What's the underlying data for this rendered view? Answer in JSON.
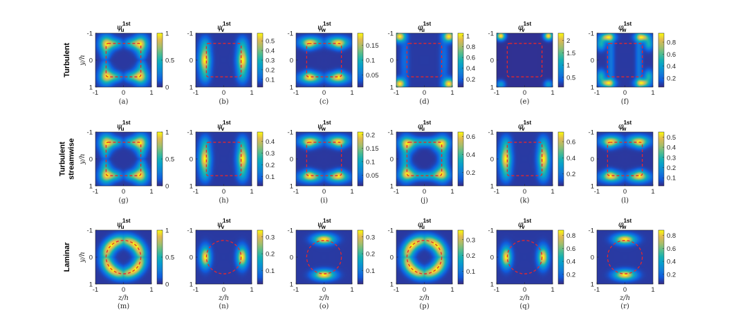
{
  "figure": {
    "row_labels": [
      [
        "Turbulent"
      ],
      [
        "Turbulent",
        "streamwise"
      ],
      [
        "Laminar"
      ]
    ],
    "y_axis_label": "y/h",
    "x_axis_label": "z/h",
    "axis_ticks": [
      "-1",
      "0",
      "1"
    ]
  },
  "chart_data": [
    {
      "type": "heatmap",
      "panel": "(a)",
      "title_symbol": "ψ",
      "title_sup": "1st",
      "title_sub": "u",
      "row": "Turbulent",
      "colorbar_ticks": [
        "1",
        "0.5",
        "0"
      ],
      "range": [
        0,
        1
      ],
      "pattern": "u",
      "wall": "square",
      "xlim": [
        -1,
        1
      ],
      "ylim": [
        -1,
        1
      ]
    },
    {
      "type": "heatmap",
      "panel": "(b)",
      "title_symbol": "ψ",
      "title_sup": "1st",
      "title_sub": "v",
      "row": "Turbulent",
      "colorbar_ticks": [
        "0.5",
        "0.4",
        "0.3",
        "0.2",
        "0.1"
      ],
      "range": [
        0.02,
        0.58
      ],
      "pattern": "v",
      "wall": "square",
      "xlim": [
        -1,
        1
      ],
      "ylim": [
        -1,
        1
      ]
    },
    {
      "type": "heatmap",
      "panel": "(c)",
      "title_symbol": "ψ",
      "title_sup": "1st",
      "title_sub": "w",
      "row": "Turbulent",
      "colorbar_ticks": [
        "0.15",
        "0.1",
        "0.05"
      ],
      "range": [
        0.01,
        0.19
      ],
      "pattern": "w",
      "wall": "square",
      "xlim": [
        -1,
        1
      ],
      "ylim": [
        -1,
        1
      ]
    },
    {
      "type": "heatmap",
      "panel": "(d)",
      "title_symbol": "φ",
      "title_sup": "1st",
      "title_sub": "u",
      "row": "Turbulent",
      "colorbar_ticks": [
        "1",
        "0.8",
        "0.6",
        "0.4",
        "0.2"
      ],
      "range": [
        0.05,
        1.05
      ],
      "pattern": "corners",
      "wall": "square",
      "xlim": [
        -1,
        1
      ],
      "ylim": [
        -1,
        1
      ]
    },
    {
      "type": "heatmap",
      "panel": "(e)",
      "title_symbol": "φ",
      "title_sup": "1st",
      "title_sub": "v",
      "row": "Turbulent",
      "colorbar_ticks": [
        "2",
        "1.5",
        "1",
        "0.5"
      ],
      "range": [
        0.1,
        2.3
      ],
      "pattern": "corners_top",
      "wall": "square",
      "xlim": [
        -1,
        1
      ],
      "ylim": [
        -1,
        1
      ]
    },
    {
      "type": "heatmap",
      "panel": "(f)",
      "title_symbol": "φ",
      "title_sup": "1st",
      "title_sub": "w",
      "row": "Turbulent",
      "colorbar_ticks": [
        "0.8",
        "0.6",
        "0.4",
        "0.2"
      ],
      "range": [
        0.05,
        0.95
      ],
      "pattern": "corners_web",
      "wall": "square",
      "xlim": [
        -1,
        1
      ],
      "ylim": [
        -1,
        1
      ]
    },
    {
      "type": "heatmap",
      "panel": "(g)",
      "title_symbol": "ψ",
      "title_sup": "1st",
      "title_sub": "u",
      "row": "Turbulent streamwise",
      "colorbar_ticks": [
        "1",
        "0.5",
        "0"
      ],
      "range": [
        0,
        1
      ],
      "pattern": "u",
      "wall": "square",
      "xlim": [
        -1,
        1
      ],
      "ylim": [
        -1,
        1
      ]
    },
    {
      "type": "heatmap",
      "panel": "(h)",
      "title_symbol": "ψ",
      "title_sup": "1st",
      "title_sub": "v",
      "row": "Turbulent streamwise",
      "colorbar_ticks": [
        "0.4",
        "0.3",
        "0.2",
        "0.1"
      ],
      "range": [
        0.02,
        0.48
      ],
      "pattern": "v",
      "wall": "square",
      "xlim": [
        -1,
        1
      ],
      "ylim": [
        -1,
        1
      ]
    },
    {
      "type": "heatmap",
      "panel": "(i)",
      "title_symbol": "ψ",
      "title_sup": "1st",
      "title_sub": "w",
      "row": "Turbulent streamwise",
      "colorbar_ticks": [
        "0.2",
        "0.15",
        "0.1",
        "0.05"
      ],
      "range": [
        0.01,
        0.21
      ],
      "pattern": "w",
      "wall": "square",
      "xlim": [
        -1,
        1
      ],
      "ylim": [
        -1,
        1
      ]
    },
    {
      "type": "heatmap",
      "panel": "(j)",
      "title_symbol": "φ",
      "title_sup": "1st",
      "title_sub": "u",
      "row": "Turbulent streamwise",
      "colorbar_ticks": [
        "0.6",
        "0.4",
        "0.2"
      ],
      "range": [
        0.05,
        0.65
      ],
      "pattern": "ring_square",
      "wall": "square",
      "xlim": [
        -1,
        1
      ],
      "ylim": [
        -1,
        1
      ]
    },
    {
      "type": "heatmap",
      "panel": "(k)",
      "title_symbol": "φ",
      "title_sup": "1st",
      "title_sub": "v",
      "row": "Turbulent streamwise",
      "colorbar_ticks": [
        "0.6",
        "0.4",
        "0.2"
      ],
      "range": [
        0.05,
        0.72
      ],
      "pattern": "v",
      "wall": "square",
      "xlim": [
        -1,
        1
      ],
      "ylim": [
        -1,
        1
      ]
    },
    {
      "type": "heatmap",
      "panel": "(l)",
      "title_symbol": "φ",
      "title_sup": "1st",
      "title_sub": "w",
      "row": "Turbulent streamwise",
      "colorbar_ticks": [
        "0.5",
        "0.4",
        "0.3",
        "0.2",
        "0.1"
      ],
      "range": [
        0.02,
        0.55
      ],
      "pattern": "w",
      "wall": "square",
      "xlim": [
        -1,
        1
      ],
      "ylim": [
        -1,
        1
      ]
    },
    {
      "type": "heatmap",
      "panel": "(m)",
      "title_symbol": "ψ",
      "title_sup": "1st",
      "title_sub": "u",
      "row": "Laminar",
      "colorbar_ticks": [
        "1",
        "0.5",
        "0"
      ],
      "range": [
        0,
        1
      ],
      "pattern": "ring4",
      "wall": "circle",
      "xlim": [
        -1,
        1
      ],
      "ylim": [
        -1,
        1
      ]
    },
    {
      "type": "heatmap",
      "panel": "(n)",
      "title_symbol": "ψ",
      "title_sup": "1st",
      "title_sub": "v",
      "row": "Laminar",
      "colorbar_ticks": [
        "0.3",
        "0.2",
        "0.1"
      ],
      "range": [
        0.02,
        0.34
      ],
      "pattern": "v_circle",
      "wall": "circle",
      "xlim": [
        -1,
        1
      ],
      "ylim": [
        -1,
        1
      ]
    },
    {
      "type": "heatmap",
      "panel": "(o)",
      "title_symbol": "ψ",
      "title_sup": "1st",
      "title_sub": "w",
      "row": "Laminar",
      "colorbar_ticks": [
        "0.3",
        "0.2",
        "0.1"
      ],
      "range": [
        0.02,
        0.34
      ],
      "pattern": "w_circle",
      "wall": "circle",
      "xlim": [
        -1,
        1
      ],
      "ylim": [
        -1,
        1
      ]
    },
    {
      "type": "heatmap",
      "panel": "(p)",
      "title_symbol": "φ",
      "title_sup": "1st",
      "title_sub": "u",
      "row": "Laminar",
      "colorbar_ticks": [
        "0.3",
        "0.2",
        "0.1"
      ],
      "range": [
        0.02,
        0.36
      ],
      "pattern": "ring4",
      "wall": "circle",
      "xlim": [
        -1,
        1
      ],
      "ylim": [
        -1,
        1
      ]
    },
    {
      "type": "heatmap",
      "panel": "(q)",
      "title_symbol": "φ",
      "title_sup": "1st",
      "title_sub": "v",
      "row": "Laminar",
      "colorbar_ticks": [
        "0.8",
        "0.6",
        "0.4",
        "0.2"
      ],
      "range": [
        0.05,
        0.88
      ],
      "pattern": "v_circle",
      "wall": "circle",
      "xlim": [
        -1,
        1
      ],
      "ylim": [
        -1,
        1
      ]
    },
    {
      "type": "heatmap",
      "panel": "(r)",
      "title_symbol": "φ",
      "title_sup": "1st",
      "title_sub": "w",
      "row": "Laminar",
      "colorbar_ticks": [
        "0.8",
        "0.6",
        "0.4",
        "0.2"
      ],
      "range": [
        0.05,
        0.88
      ],
      "pattern": "w_circle",
      "wall": "circle",
      "xlim": [
        -1,
        1
      ],
      "ylim": [
        -1,
        1
      ]
    }
  ]
}
